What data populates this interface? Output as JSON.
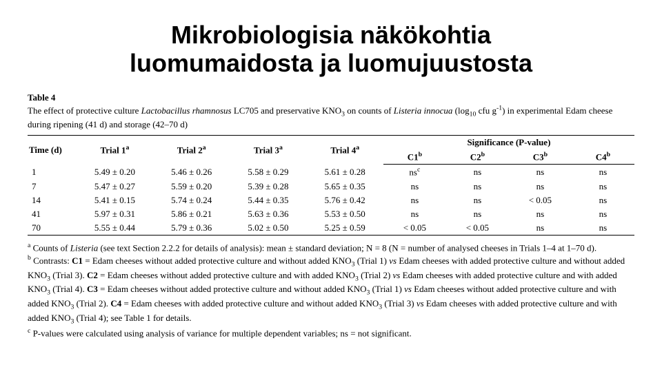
{
  "title_line1": "Mikrobiologisia näkökohtia",
  "title_line2": "luomumaidosta ja luomujuustosta",
  "caption": {
    "label": "Table 4",
    "text_before_italic1": "The effect of protective culture ",
    "italic1": "Lactobacillus rhamnosus",
    "text_mid": " LC705 and preservative KNO",
    "sub1": "3",
    "text_mid2": " on counts of ",
    "italic2": "Listeria innocua",
    "text_after": " (log",
    "sub2": "10",
    "text_after2": " cfu g",
    "sup1": "-1",
    "text_after3": ") in experimental Edam cheese during ripening (41 d) and storage (42–70 d)"
  },
  "headers": {
    "time": "Time (d)",
    "trial1": "Trial 1",
    "trial2": "Trial 2",
    "trial3": "Trial 3",
    "trial4": "Trial 4",
    "sup_a": "a",
    "sig": "Significance (P-value)",
    "c1": "C1",
    "c2": "C2",
    "c3": "C3",
    "c4": "C4",
    "sup_b": "b"
  },
  "rows": [
    {
      "time": "1",
      "t1": "5.49 ± 0.20",
      "t2": "5.46 ± 0.26",
      "t3": "5.58 ± 0.29",
      "t4": "5.61 ± 0.28",
      "c1": "ns",
      "c1sup": "c",
      "c2": "ns",
      "c3": "ns",
      "c4": "ns"
    },
    {
      "time": "7",
      "t1": "5.47 ± 0.27",
      "t2": "5.59 ± 0.20",
      "t3": "5.39 ± 0.28",
      "t4": "5.65 ± 0.35",
      "c1": "ns",
      "c1sup": "",
      "c2": "ns",
      "c3": "ns",
      "c4": "ns"
    },
    {
      "time": "14",
      "t1": "5.41 ± 0.15",
      "t2": "5.74 ± 0.24",
      "t3": "5.44 ± 0.35",
      "t4": "5.76 ± 0.42",
      "c1": "ns",
      "c1sup": "",
      "c2": "ns",
      "c3": "< 0.05",
      "c4": "ns"
    },
    {
      "time": "41",
      "t1": "5.97 ± 0.31",
      "t2": "5.86 ± 0.21",
      "t3": "5.63 ± 0.36",
      "t4": "5.53 ± 0.50",
      "c1": "ns",
      "c1sup": "",
      "c2": "ns",
      "c3": "ns",
      "c4": "ns"
    },
    {
      "time": "70",
      "t1": "5.55 ± 0.44",
      "t2": "5.79 ± 0.36",
      "t3": "5.02 ± 0.50",
      "t4": "5.25 ± 0.59",
      "c1": "< 0.05",
      "c1sup": "",
      "c2": "< 0.05",
      "c3": "ns",
      "c4": "ns"
    }
  ],
  "footnotes": {
    "a_sup": "a",
    "a_pre": " Counts of ",
    "a_italic": "Listeria",
    "a_post": " (see text Section 2.2.2 for details of analysis): mean ± standard deviation; N = 8 (N = number of analysed cheeses in Trials 1–4 at 1–70 d).",
    "b_sup": "b",
    "b_text": " Contrasts: C1 = Edam cheeses without added protective culture and without added KNO3 (Trial 1) vs Edam cheeses with added protective culture and without added KNO3 (Trial 3). C2 = Edam cheeses without added protective culture and with added KNO3 (Trial 2) vs Edam cheeses with added protective culture and with added KNO3 (Trial 4). C3 = Edam cheeses without added protective culture and without added KNO3 (Trial 1) vs Edam cheeses without added protective culture and with added KNO3 (Trial 2). C4 = Edam cheeses with added protective culture and without added KNO3 (Trial 3) vs Edam cheeses with added protective culture and with added KNO3 (Trial 4); see Table 1 for details.",
    "c_sup": "c",
    "c_text": " P-values were calculated using analysis of variance for multiple dependent variables; ns = not significant."
  },
  "style": {
    "title_fontsize": 36,
    "body_fontsize": 13,
    "text_color": "#000000",
    "background_color": "#ffffff",
    "border_color": "#000000"
  }
}
